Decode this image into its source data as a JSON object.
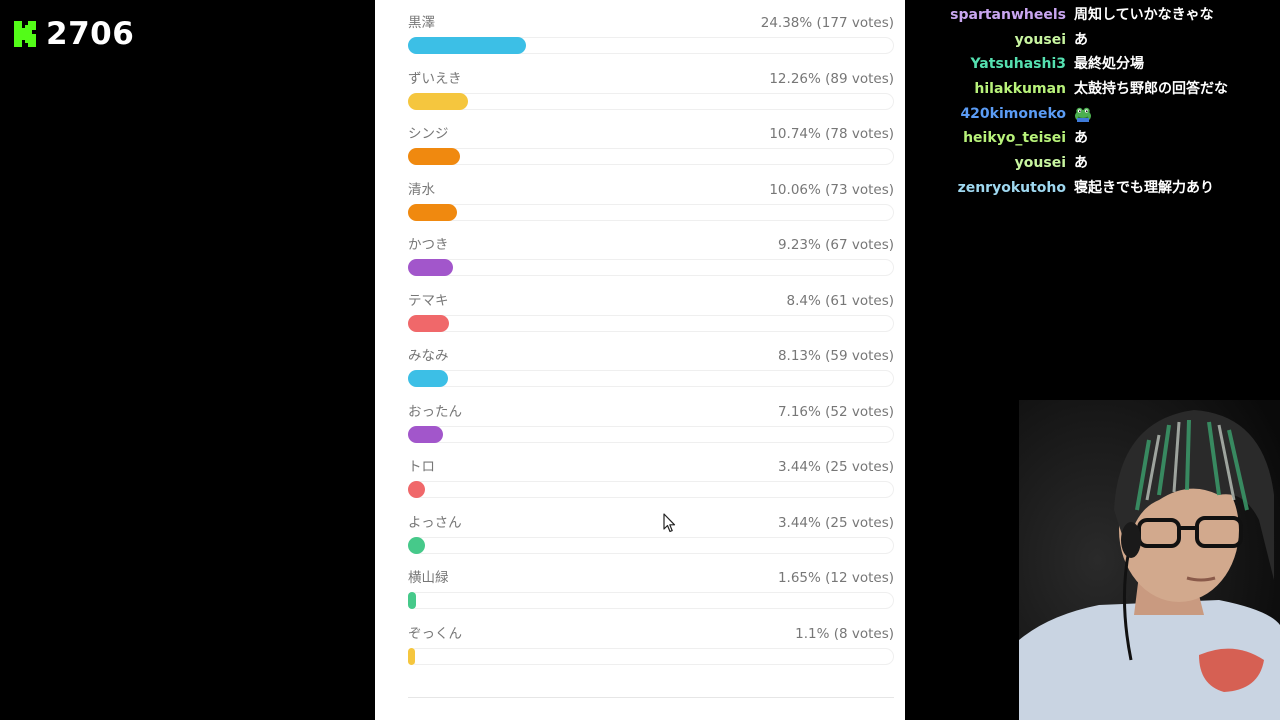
{
  "header": {
    "logo_icon": "kick-logo-icon",
    "viewer_count": "2706",
    "brand_color": "#53fc18"
  },
  "poll": {
    "options": [
      {
        "label": "黒澤",
        "stat": "24.38% (177 votes)",
        "percent": 24.38,
        "color": "#3cbfe6"
      },
      {
        "label": "ずいえき",
        "stat": "12.26% (89 votes)",
        "percent": 12.26,
        "color": "#f5c63e"
      },
      {
        "label": "シンジ",
        "stat": "10.74% (78 votes)",
        "percent": 10.74,
        "color": "#f0890f"
      },
      {
        "label": "清水",
        "stat": "10.06% (73 votes)",
        "percent": 10.06,
        "color": "#f0890f"
      },
      {
        "label": "かつき",
        "stat": "9.23% (67 votes)",
        "percent": 9.23,
        "color": "#a256cb"
      },
      {
        "label": "テマキ",
        "stat": "8.4% (61 votes)",
        "percent": 8.4,
        "color": "#f0686a"
      },
      {
        "label": "みなみ",
        "stat": "8.13% (59 votes)",
        "percent": 8.13,
        "color": "#3cbfe6"
      },
      {
        "label": "おったん",
        "stat": "7.16% (52 votes)",
        "percent": 7.16,
        "color": "#a256cb"
      },
      {
        "label": "トロ",
        "stat": "3.44% (25 votes)",
        "percent": 3.44,
        "color": "#f0686a"
      },
      {
        "label": "よっさん",
        "stat": "3.44% (25 votes)",
        "percent": 3.44,
        "color": "#46c98a"
      },
      {
        "label": "横山緑",
        "stat": "1.65% (12 votes)",
        "percent": 1.65,
        "color": "#46c98a"
      },
      {
        "label": "ぞっくん",
        "stat": "1.1% (8 votes)",
        "percent": 1.1,
        "color": "#f5c63e"
      }
    ]
  },
  "chat": {
    "messages": [
      {
        "user": "spartanwheels",
        "color": "#c9a6f0",
        "text": "周知していかなきゃな"
      },
      {
        "user": "yousei",
        "color": "#c8f5a0",
        "text": "あ"
      },
      {
        "user": "Yatsuhashi3",
        "color": "#55e0b0",
        "text": "最終処分場"
      },
      {
        "user": "hilakkuman",
        "color": "#b8f27a",
        "text": "太鼓持ち野郎の回答だな"
      },
      {
        "user": "420kimoneko",
        "color": "#5b9cf5",
        "text": "",
        "emote": "frog-emote-icon"
      },
      {
        "user": "heikyo_teisei",
        "color": "#b8f27a",
        "text": "あ"
      },
      {
        "user": "yousei",
        "color": "#c8f5a0",
        "text": "あ"
      },
      {
        "user": "zenryokutoho",
        "color": "#9fd8f0",
        "text": "寝起きでも理解力あり"
      }
    ]
  }
}
